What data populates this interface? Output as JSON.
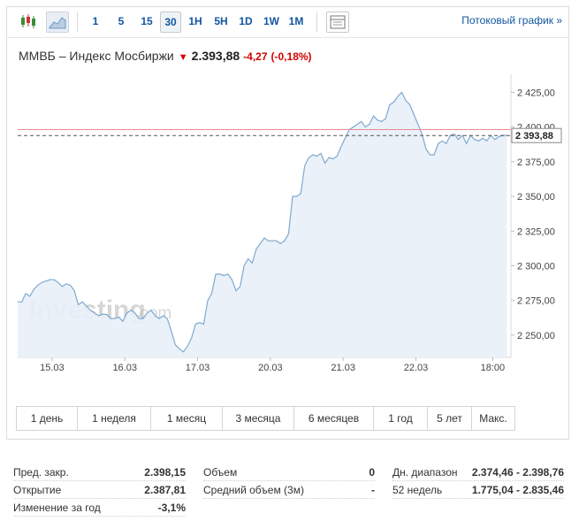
{
  "toolbar": {
    "timeframes": [
      "1",
      "5",
      "15",
      "30",
      "1H",
      "5H",
      "1D",
      "1W",
      "1M"
    ],
    "active_timeframe": "30",
    "stream_link": "Потоковый график »"
  },
  "header": {
    "instrument": "ММВБ – Индекс Мосбиржи",
    "price": "2.393,88",
    "change": "-4,27",
    "change_pct": "(-0,18%)"
  },
  "watermark": {
    "brand": "Investing",
    "suffix": ".com"
  },
  "chart_data": {
    "type": "area",
    "y_tick_labels": [
      "2 425,00",
      "2 400,00",
      "2 375,00",
      "2 350,00",
      "2 325,00",
      "2 300,00",
      "2 275,00",
      "2 250,00"
    ],
    "y_ticks": [
      2425,
      2400,
      2375,
      2350,
      2325,
      2300,
      2275,
      2250
    ],
    "ylim": [
      2234,
      2438
    ],
    "x_tick_labels": [
      "15.03",
      "16.03",
      "17.03",
      "20.03",
      "21.03",
      "22.03",
      "18:00"
    ],
    "x_ticks": [
      8.5,
      26.5,
      44.5,
      62.5,
      80.5,
      98.5,
      117.5
    ],
    "xlim": [
      0,
      122
    ],
    "current_price_label": "2 393,88",
    "current_price": 2393.88,
    "previous_close": 2398.15,
    "series": [
      {
        "values": [
          2274,
          2274,
          2280,
          2278,
          2283,
          2286,
          2288,
          2289,
          2290,
          2290,
          2288,
          2285,
          2287,
          2286,
          2282,
          2272,
          2274,
          2271,
          2268,
          2266,
          2264,
          2265,
          2265,
          2262,
          2262,
          2263,
          2260,
          2266,
          2268,
          2266,
          2262,
          2262,
          2266,
          2268,
          2264,
          2262,
          2264,
          2262,
          2253,
          2243,
          2240,
          2238,
          2242,
          2248,
          2258,
          2259,
          2258,
          2275,
          2280,
          2294,
          2294,
          2293,
          2294,
          2290,
          2282,
          2285,
          2300,
          2305,
          2302,
          2312,
          2316,
          2320,
          2318,
          2318,
          2318,
          2316,
          2318,
          2323,
          2350,
          2350,
          2352,
          2372,
          2378,
          2380,
          2379,
          2381,
          2374,
          2378,
          2377,
          2379,
          2386,
          2392,
          2398,
          2400,
          2402,
          2404,
          2400,
          2402,
          2408,
          2405,
          2404,
          2406,
          2416,
          2418,
          2422,
          2425,
          2419,
          2416,
          2409,
          2402,
          2395,
          2384,
          2380,
          2380,
          2388,
          2390,
          2388,
          2394,
          2395,
          2391,
          2394,
          2388,
          2394,
          2391,
          2390,
          2392,
          2390,
          2394,
          2391,
          2393,
          2394,
          2394
        ]
      }
    ]
  },
  "ranges": [
    "1 день",
    "1 неделя",
    "1 месяц",
    "3 месяца",
    "6 месяцев",
    "1 год",
    "5 лет",
    "Макс."
  ],
  "stats": {
    "col1": [
      {
        "label": "Пред. закр.",
        "value": "2.398,15"
      },
      {
        "label": "Открытие",
        "value": "2.387,81"
      },
      {
        "label": "Изменение за год",
        "value": "-3,1%"
      }
    ],
    "col2": [
      {
        "label": "Объем",
        "value": "0"
      },
      {
        "label": "Средний объем (3м)",
        "value": "-"
      }
    ],
    "col3": [
      {
        "label": "Дн. диапазон",
        "value": "2.374,46 - 2.398,76"
      },
      {
        "label": "52 недель",
        "value": "1.775,04 - 2.835,46"
      }
    ]
  },
  "colors": {
    "line": "#7fa9cf",
    "fill": "#e8f0f8",
    "link": "#1256a0",
    "negative": "#d40000",
    "prev_close_line": "#e88d8d"
  }
}
